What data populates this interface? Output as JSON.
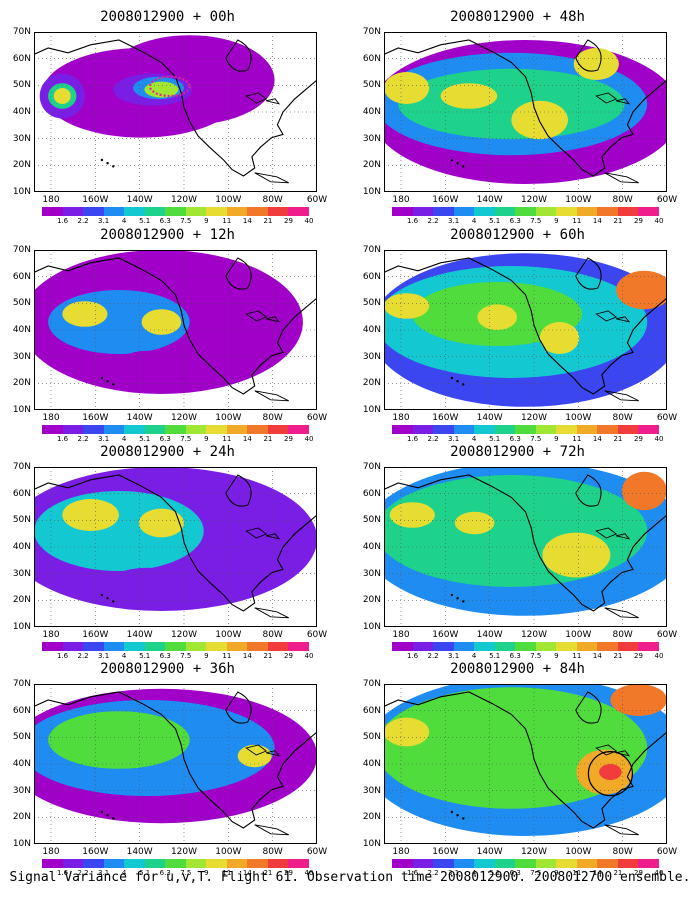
{
  "figure": {
    "caption": "Signal Variance for u,v,T. Flight 61. Observation time 2008012900. 2008012700 ensemble.",
    "lat_labels": [
      "70N",
      "60N",
      "50N",
      "40N",
      "30N",
      "20N",
      "10N"
    ],
    "lon_labels": [
      "180",
      "160W",
      "140W",
      "120W",
      "100W",
      "80W",
      "60W"
    ],
    "colorbar": {
      "labels": [
        "1.6",
        "2.2",
        "3.1",
        "4",
        "5.1",
        "6.3",
        "7.5",
        "9",
        "11",
        "14",
        "21",
        "29",
        "40"
      ],
      "colors": [
        "#a000c8",
        "#7a1ee6",
        "#3c46f0",
        "#1e8cf0",
        "#14c8d2",
        "#1ed28c",
        "#50dc3c",
        "#a0e632",
        "#e6dc32",
        "#f0aa28",
        "#f07828",
        "#f03c3c",
        "#f01e8c"
      ]
    },
    "panels": [
      {
        "title": "2008012900 + 00h",
        "lead_hours": 0
      },
      {
        "title": "2008012900 + 48h",
        "lead_hours": 48
      },
      {
        "title": "2008012900 + 12h",
        "lead_hours": 12
      },
      {
        "title": "2008012900 + 60h",
        "lead_hours": 60
      },
      {
        "title": "2008012900 + 24h",
        "lead_hours": 24
      },
      {
        "title": "2008012900 + 72h",
        "lead_hours": 72
      },
      {
        "title": "2008012900 + 36h",
        "lead_hours": 36
      },
      {
        "title": "2008012900 + 84h",
        "lead_hours": 84
      }
    ]
  }
}
